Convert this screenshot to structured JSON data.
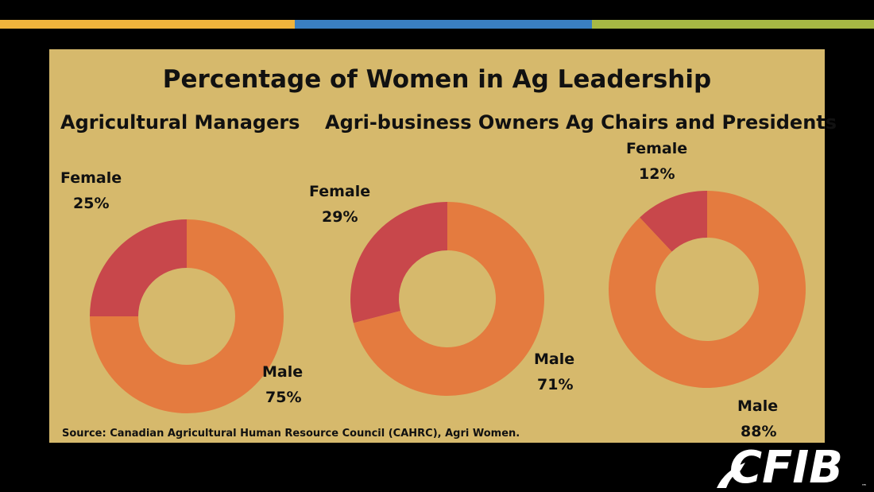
{
  "colors": {
    "female": "#c8474b",
    "male": "#e47b3f",
    "bar_colors": [
      "#f0b43c",
      "#3a7fc1",
      "#a7b844"
    ]
  },
  "logo_text": "CFIB",
  "chart_data": {
    "type": "pie",
    "title": "Percentage of Women in Ag Leadership",
    "source": "Source: Canadian Agricultural Human Resource Council (CAHRC), Agri Women.",
    "charts": [
      {
        "subtitle": "Agricultural Managers",
        "slices": [
          {
            "label": "Female",
            "value": 25,
            "value_label": "25%"
          },
          {
            "label": "Male",
            "value": 75,
            "value_label": "75%"
          }
        ]
      },
      {
        "subtitle": "Agri-business Owners",
        "slices": [
          {
            "label": "Female",
            "value": 29,
            "value_label": "29%"
          },
          {
            "label": "Male",
            "value": 71,
            "value_label": "71%"
          }
        ]
      },
      {
        "subtitle": "Ag Chairs and Presidents",
        "slices": [
          {
            "label": "Female",
            "value": 12,
            "value_label": "12%"
          },
          {
            "label": "Male",
            "value": 88,
            "value_label": "88%"
          }
        ]
      }
    ]
  }
}
